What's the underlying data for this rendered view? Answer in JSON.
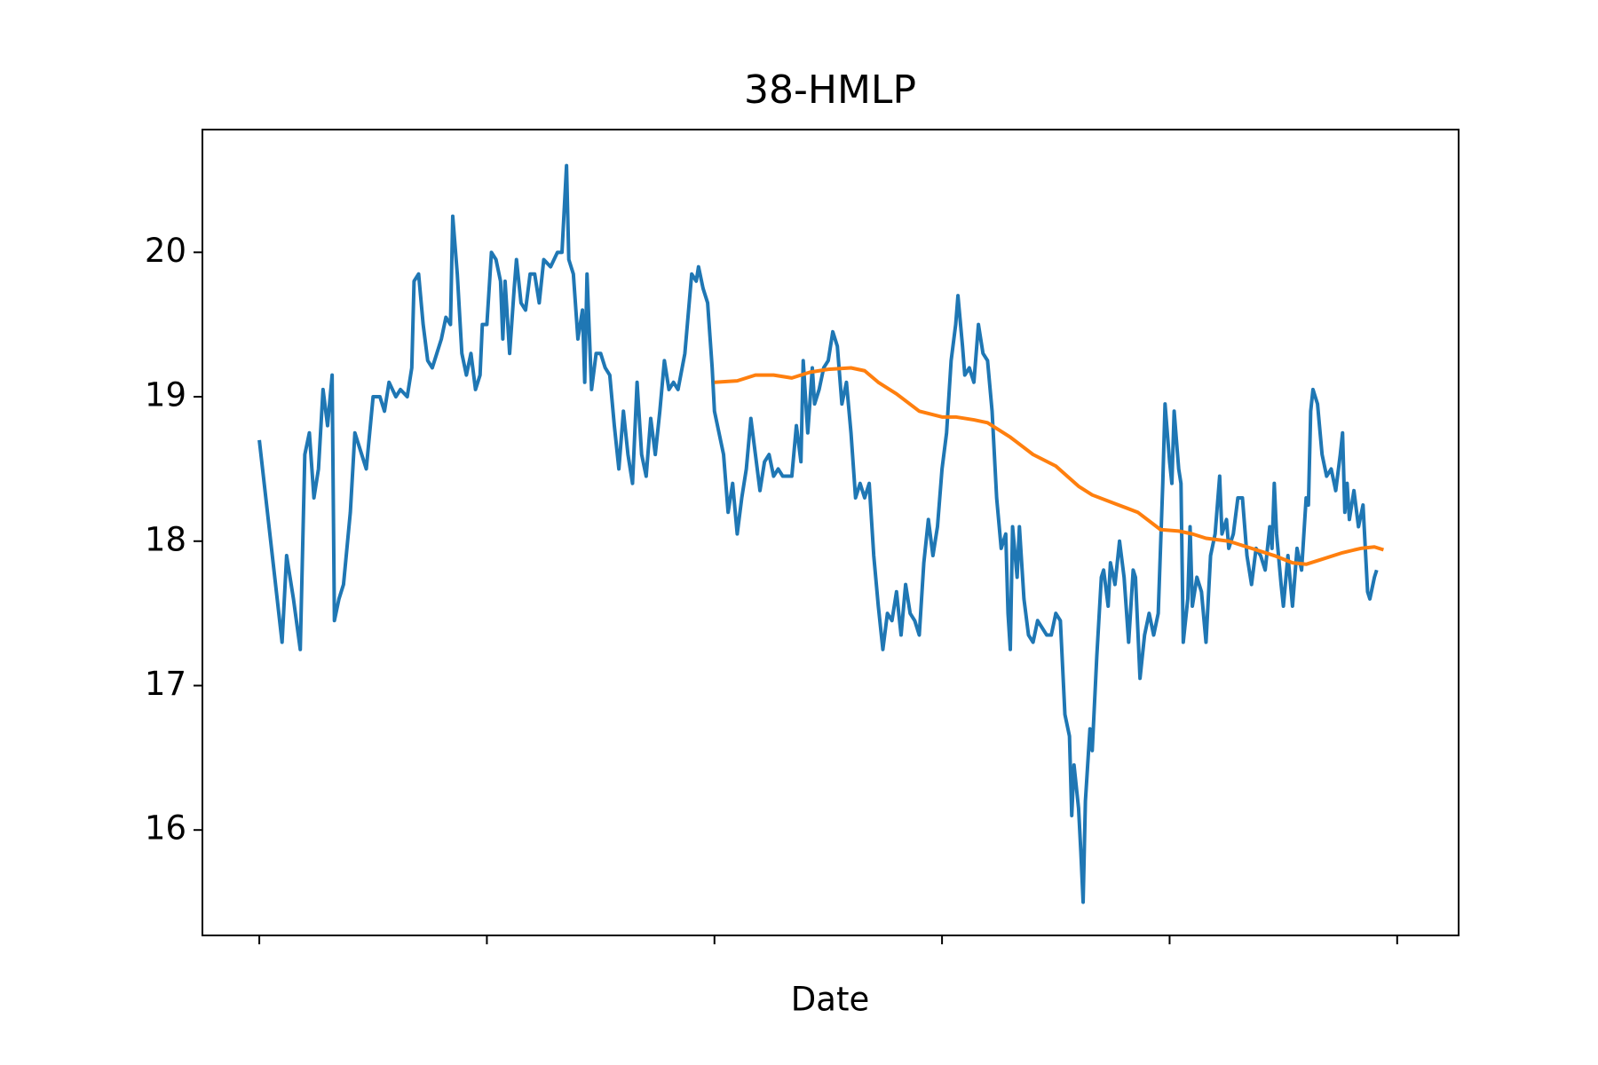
{
  "chart_data": {
    "type": "line",
    "title": "38-HMLP",
    "x_label": "Date",
    "xlim": [
      -25,
      527
    ],
    "xticks": [
      0,
      100,
      200,
      300,
      400,
      500
    ],
    "ylim": [
      15.27,
      20.85
    ],
    "yticks": [
      16,
      17,
      18,
      19,
      20
    ],
    "series": [
      {
        "color": "#1f77b4",
        "x": [
          0,
          5,
          10,
          12,
          15,
          18,
          20,
          22,
          24,
          26,
          28,
          30,
          32,
          33,
          35,
          37,
          40,
          42,
          45,
          47,
          50,
          53,
          55,
          57,
          60,
          62,
          65,
          67,
          68,
          70,
          72,
          74,
          76,
          78,
          80,
          82,
          84,
          85,
          87,
          89,
          91,
          93,
          95,
          97,
          98,
          100,
          102,
          104,
          106,
          107,
          108,
          110,
          112,
          113,
          115,
          117,
          119,
          121,
          123,
          125,
          128,
          131,
          133,
          135,
          136,
          138,
          140,
          142,
          143,
          144,
          146,
          148,
          150,
          152,
          154,
          156,
          158,
          160,
          162,
          164,
          166,
          168,
          170,
          172,
          174,
          176,
          178,
          180,
          182,
          184,
          187,
          190,
          192,
          193,
          195,
          197,
          199,
          200,
          202,
          204,
          206,
          208,
          210,
          212,
          214,
          216,
          218,
          220,
          222,
          224,
          226,
          228,
          230,
          232,
          234,
          236,
          238,
          239,
          241,
          243,
          244,
          246,
          248,
          250,
          252,
          254,
          256,
          258,
          260,
          262,
          264,
          266,
          268,
          270,
          272,
          274,
          276,
          278,
          280,
          282,
          284,
          286,
          288,
          290,
          292,
          294,
          296,
          298,
          300,
          302,
          304,
          306,
          307,
          309,
          310,
          312,
          314,
          316,
          318,
          320,
          322,
          324,
          326,
          328,
          329,
          330,
          331,
          333,
          334,
          336,
          338,
          340,
          342,
          344,
          346,
          348,
          350,
          352,
          354,
          356,
          357,
          358,
          360,
          361,
          362,
          363,
          365,
          366,
          368,
          370,
          371,
          373,
          374,
          376,
          378,
          380,
          382,
          384,
          385,
          386,
          387,
          389,
          391,
          393,
          395,
          397,
          398,
          400,
          401,
          402,
          404,
          405,
          406,
          408,
          409,
          410,
          412,
          414,
          416,
          418,
          420,
          422,
          423,
          425,
          426,
          428,
          430,
          432,
          434,
          436,
          438,
          440,
          442,
          444,
          445,
          446,
          447,
          449,
          450,
          452,
          454,
          456,
          458,
          460,
          461,
          462,
          463,
          465,
          467,
          469,
          471,
          473,
          475,
          476,
          477,
          478,
          479,
          481,
          483,
          485,
          487,
          488,
          490,
          491
        ],
        "values": [
          18.7,
          18.0,
          17.3,
          17.9,
          17.6,
          17.25,
          18.6,
          18.75,
          18.3,
          18.5,
          19.05,
          18.8,
          19.15,
          17.45,
          17.6,
          17.7,
          18.2,
          18.75,
          18.6,
          18.5,
          19.0,
          19.0,
          18.9,
          19.1,
          19.0,
          19.05,
          19.0,
          19.2,
          19.8,
          19.85,
          19.5,
          19.25,
          19.2,
          19.3,
          19.4,
          19.55,
          19.5,
          20.25,
          19.85,
          19.3,
          19.15,
          19.3,
          19.05,
          19.15,
          19.5,
          19.5,
          20.0,
          19.95,
          19.8,
          19.4,
          19.8,
          19.3,
          19.75,
          19.95,
          19.65,
          19.6,
          19.85,
          19.85,
          19.65,
          19.95,
          19.9,
          20.0,
          20.0,
          20.6,
          19.95,
          19.85,
          19.4,
          19.6,
          19.1,
          19.85,
          19.05,
          19.3,
          19.3,
          19.2,
          19.15,
          18.8,
          18.5,
          18.9,
          18.6,
          18.4,
          19.1,
          18.6,
          18.45,
          18.85,
          18.6,
          18.9,
          19.25,
          19.05,
          19.1,
          19.05,
          19.3,
          19.85,
          19.8,
          19.9,
          19.75,
          19.65,
          19.2,
          18.9,
          18.75,
          18.6,
          18.2,
          18.4,
          18.05,
          18.3,
          18.5,
          18.85,
          18.6,
          18.35,
          18.55,
          18.6,
          18.45,
          18.5,
          18.45,
          18.45,
          18.45,
          18.8,
          18.55,
          19.25,
          18.75,
          19.2,
          18.95,
          19.05,
          19.2,
          19.25,
          19.45,
          19.35,
          18.95,
          19.1,
          18.75,
          18.3,
          18.4,
          18.3,
          18.4,
          17.9,
          17.55,
          17.25,
          17.5,
          17.45,
          17.65,
          17.35,
          17.7,
          17.5,
          17.45,
          17.35,
          17.85,
          18.15,
          17.9,
          18.1,
          18.5,
          18.75,
          19.25,
          19.5,
          19.7,
          19.35,
          19.15,
          19.2,
          19.1,
          19.5,
          19.3,
          19.25,
          18.9,
          18.3,
          17.95,
          18.05,
          17.5,
          17.25,
          18.1,
          17.75,
          18.1,
          17.6,
          17.35,
          17.3,
          17.45,
          17.4,
          17.35,
          17.35,
          17.5,
          17.45,
          16.8,
          16.65,
          16.1,
          16.45,
          16.15,
          15.85,
          15.5,
          16.2,
          16.7,
          16.55,
          17.2,
          17.75,
          17.8,
          17.55,
          17.85,
          17.7,
          18.0,
          17.75,
          17.3,
          17.8,
          17.75,
          17.4,
          17.05,
          17.35,
          17.5,
          17.35,
          17.5,
          18.4,
          18.95,
          18.55,
          18.4,
          18.9,
          18.5,
          18.4,
          17.3,
          17.6,
          18.1,
          17.55,
          17.75,
          17.65,
          17.3,
          17.9,
          18.05,
          18.45,
          18.05,
          18.15,
          17.95,
          18.05,
          18.3,
          18.3,
          17.9,
          17.7,
          17.95,
          17.9,
          17.8,
          18.1,
          17.95,
          18.4,
          18.05,
          17.7,
          17.55,
          17.9,
          17.55,
          17.95,
          17.8,
          18.3,
          18.25,
          18.9,
          19.05,
          18.95,
          18.6,
          18.45,
          18.5,
          18.35,
          18.6,
          18.75,
          18.2,
          18.4,
          18.15,
          18.35,
          18.1,
          18.25,
          17.65,
          17.6,
          17.75,
          17.8
        ]
      },
      {
        "color": "#ff7f0e",
        "x": [
          200,
          210,
          218,
          226,
          234,
          242,
          250,
          260,
          266,
          272,
          280,
          290,
          300,
          306,
          314,
          320,
          330,
          340,
          350,
          360,
          366,
          376,
          386,
          396,
          404,
          410,
          416,
          426,
          436,
          446,
          454,
          460,
          466,
          476,
          484,
          490,
          494
        ],
        "values": [
          19.1,
          19.11,
          19.15,
          19.15,
          19.13,
          19.17,
          19.19,
          19.2,
          19.18,
          19.1,
          19.02,
          18.9,
          18.86,
          18.86,
          18.84,
          18.82,
          18.72,
          18.6,
          18.52,
          18.38,
          18.32,
          18.26,
          18.2,
          18.08,
          18.07,
          18.05,
          18.02,
          18.0,
          17.95,
          17.9,
          17.85,
          17.84,
          17.87,
          17.92,
          17.95,
          17.96,
          17.94
        ]
      }
    ]
  }
}
